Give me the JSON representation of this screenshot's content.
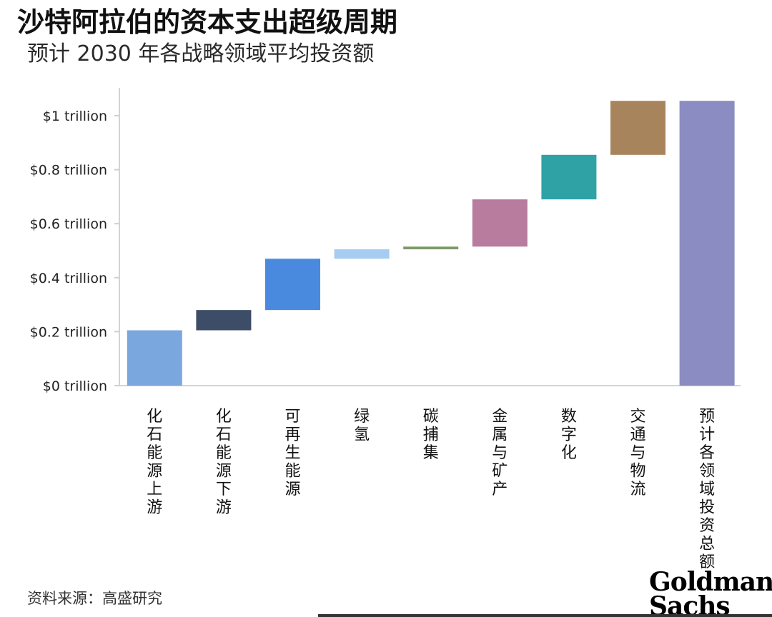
{
  "header": {
    "title": "沙特阿拉伯的资本支出超级周期",
    "subtitle": "预计 2030 年各战略领域平均投资额"
  },
  "footer": {
    "source": "资料来源：高盛研究",
    "logo_line1": "Goldman",
    "logo_line2": "Sachs"
  },
  "chart_data": {
    "type": "bar",
    "subtype": "waterfall",
    "title": "沙特阿拉伯的资本支出超级周期",
    "subtitle": "预计 2030 年各战略领域平均投资额",
    "xlabel": "",
    "ylabel": "",
    "unit": "trillion",
    "ylim": [
      0,
      1.05
    ],
    "yticks": [
      0,
      0.2,
      0.4,
      0.6,
      0.8,
      1.0
    ],
    "ytick_labels": [
      "$0 trillion",
      "$0.2 trillion",
      "$0.4 trillion",
      "$0.6 trillion",
      "$0.8 trillion",
      "$1 trillion"
    ],
    "grid": false,
    "legend": "none",
    "categories": [
      "化石能源上游",
      "化石能源下游",
      "可再生能源",
      "绿氢",
      "碳捕集",
      "金属与矿产",
      "数字化",
      "交通与物流",
      "预计各领域投资总额"
    ],
    "values": [
      0.205,
      0.075,
      0.19,
      0.035,
      0.01,
      0.175,
      0.165,
      0.2,
      1.055
    ],
    "start": [
      0,
      0.205,
      0.28,
      0.47,
      0.505,
      0.515,
      0.69,
      0.855,
      0
    ],
    "colors": [
      "#7ba7df",
      "#3d4d68",
      "#4a8ade",
      "#a6cdf1",
      "#7d9a6a",
      "#b87c9e",
      "#2fa2a6",
      "#a8845c",
      "#8a8cc2"
    ]
  }
}
